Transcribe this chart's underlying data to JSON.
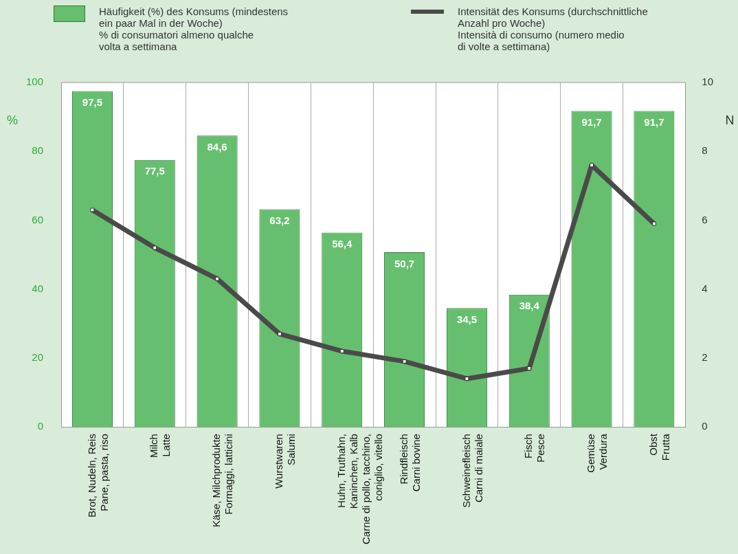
{
  "chart_data": {
    "type": "bar",
    "categories": [
      "Brot, Nudeln, Reis\nPane, pasta, riso",
      "Milch\nLatte",
      "Käse, Milchprodukte\nFormaggi, latticini",
      "Wurstwaren\nSalumi",
      "Huhn, Truthahn,\nKaninchen, Kalb\nCarne di pollo, tacchino,\nconiglio, vitello",
      "Rindfleisch\nCarni bovine",
      "Schweinefleisch\nCarni di maiale",
      "Fisch\nPesce",
      "Gemüse\nVerdura",
      "Obst\nFrutta"
    ],
    "series": [
      {
        "name": "Häufigkeit (%) des Konsums (mindestens\nein paar Mal in der Woche)\n% di consumatori almeno qualche\nvolta a settimana",
        "color": "#66bf6e",
        "values": [
          97.5,
          77.5,
          84.6,
          63.2,
          56.4,
          50.7,
          34.5,
          38.4,
          91.7,
          91.7
        ],
        "value_labels": [
          "97,5",
          "77,5",
          "84,6",
          "63,2",
          "56,4",
          "50,7",
          "34,5",
          "38,4",
          "91,7",
          "91,7"
        ]
      },
      {
        "name": "Intensität des Konsums (durchschnittliche\nAnzahl pro Woche)\nIntensità di consumo (numero medio\ndi volte a settimana)",
        "type": "line",
        "axis": "y2",
        "color": "#4a4a4a",
        "values": [
          6.3,
          5.2,
          4.3,
          2.7,
          2.2,
          1.9,
          1.4,
          1.7,
          7.6,
          5.9
        ]
      }
    ],
    "ylabel": "%",
    "y2label": "N",
    "ylim": [
      0,
      100
    ],
    "yticks": [
      0,
      20,
      40,
      60,
      80,
      100
    ],
    "y2lim": [
      0,
      10
    ],
    "y2ticks": [
      0,
      2,
      4,
      6,
      8,
      10
    ],
    "grid": "x",
    "legend": "top",
    "marker": "square",
    "line_style": "solid"
  }
}
